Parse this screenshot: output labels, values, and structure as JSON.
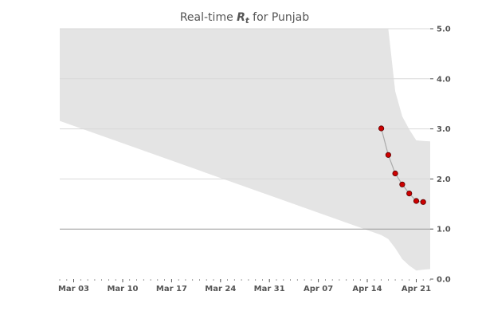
{
  "chart_data": {
    "type": "line",
    "title": {
      "prefix": "Real-time ",
      "symbol": "R",
      "subscript": "t",
      "suffix": " for Punjab"
    },
    "x_ticks": [
      "Mar 03",
      "Mar 10",
      "Mar 17",
      "Mar 24",
      "Mar 31",
      "Apr 07",
      "Apr 14",
      "Apr 21"
    ],
    "x_range": [
      "2020-03-01",
      "2020-04-23"
    ],
    "y_ticks": [
      "0.0",
      "1.0",
      "2.0",
      "3.0",
      "4.0",
      "5.0"
    ],
    "ylim": [
      0,
      5
    ],
    "reference_line": 1.0,
    "grid": true,
    "series": [
      {
        "type": "line+markers",
        "points": [
          {
            "x": "2020-04-16",
            "y": 3.01
          },
          {
            "x": "2020-04-17",
            "y": 2.48
          },
          {
            "x": "2020-04-18",
            "y": 2.11
          },
          {
            "x": "2020-04-19",
            "y": 1.89
          },
          {
            "x": "2020-04-20",
            "y": 1.71
          },
          {
            "x": "2020-04-21",
            "y": 1.56
          },
          {
            "x": "2020-04-22",
            "y": 1.54
          }
        ]
      }
    ],
    "interval": {
      "x": [
        "2020-03-01",
        "2020-04-16",
        "2020-04-17",
        "2020-04-18",
        "2020-04-19",
        "2020-04-20",
        "2020-04-21",
        "2020-04-22",
        "2020-04-23"
      ],
      "upper": [
        5.0,
        5.0,
        5.0,
        5.0,
        5.0,
        5.0,
        5.0,
        5.0,
        5.0
      ],
      "lower": [
        3.16,
        0.88,
        0.8,
        0.62,
        0.4,
        0.27,
        0.17,
        0.19,
        0.2
      ],
      "upper_tail": {
        "x": [
          "2020-04-17",
          "2020-04-18",
          "2020-04-19",
          "2020-04-20",
          "2020-04-21",
          "2020-04-22",
          "2020-04-23"
        ],
        "upper": [
          5.0,
          3.75,
          3.25,
          2.99,
          2.77,
          2.76,
          2.75
        ]
      }
    },
    "colors": {
      "point_fill": "#cc0000",
      "point_stroke": "#5a0000",
      "line": "#aaaaaa",
      "band": "#e4e4e4",
      "grid": "#d8d8d8",
      "reference": "#999999",
      "text": "#555555"
    }
  }
}
